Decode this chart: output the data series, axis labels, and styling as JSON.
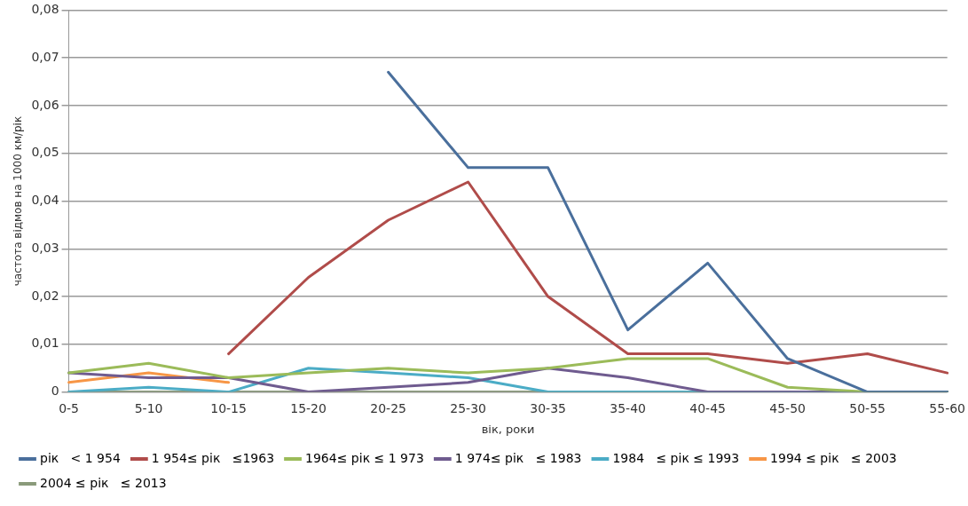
{
  "chart_data": {
    "type": "line",
    "xlabel": "вік, роки",
    "ylabel": "частота відмов на 1000 км/рік",
    "categories": [
      "0-5",
      "5-10",
      "10-15",
      "15-20",
      "20-25",
      "25-30",
      "30-35",
      "35-40",
      "40-45",
      "45-50",
      "50-55",
      "55-60"
    ],
    "ylim": [
      0,
      0.08
    ],
    "yticks": [
      {
        "value": 0,
        "label": "0"
      },
      {
        "value": 0.01,
        "label": "0,01"
      },
      {
        "value": 0.02,
        "label": "0,02"
      },
      {
        "value": 0.03,
        "label": "0,03"
      },
      {
        "value": 0.04,
        "label": "0,04"
      },
      {
        "value": 0.05,
        "label": "0,05"
      },
      {
        "value": 0.06,
        "label": "0,06"
      },
      {
        "value": 0.07,
        "label": "0,07"
      },
      {
        "value": 0.08,
        "label": "0,08"
      }
    ],
    "grid": "y",
    "legend": "bottom",
    "marker": "none",
    "line_style": "solid",
    "series": [
      {
        "name": "рік   < 1 954",
        "color": "#4a6f9c",
        "values": [
          null,
          null,
          null,
          null,
          0.067,
          0.047,
          0.047,
          0.013,
          0.027,
          0.007,
          0,
          0
        ]
      },
      {
        "name": "1 954≤ рік   ≤1963",
        "color": "#b04c4a",
        "values": [
          null,
          null,
          0.008,
          0.024,
          0.036,
          0.044,
          0.02,
          0.008,
          0.008,
          0.006,
          0.008,
          0.004
        ]
      },
      {
        "name": "1964≤ рік ≤ 1 973",
        "color": "#9bbb59",
        "values": [
          0.004,
          0.006,
          0.003,
          0.004,
          0.005,
          0.004,
          0.005,
          0.007,
          0.007,
          0.001,
          0,
          0
        ]
      },
      {
        "name": "1 974≤ рік   ≤ 1983",
        "color": "#6f5b8f",
        "values": [
          0.004,
          0.003,
          0.003,
          0,
          0.001,
          0.002,
          0.005,
          0.003,
          0,
          0,
          0,
          0
        ]
      },
      {
        "name": "1984   ≤ рік ≤ 1993",
        "color": "#4bacc6",
        "values": [
          0,
          0.001,
          0,
          0.005,
          0.004,
          0.003,
          0,
          0,
          0,
          0,
          0,
          0
        ]
      },
      {
        "name": "1994 ≤ рік   ≤ 2003",
        "color": "#f79646",
        "values": [
          0.002,
          0.004,
          0.002,
          null,
          null,
          null,
          null,
          null,
          null,
          null,
          null,
          null
        ]
      },
      {
        "name": "2004 ≤ рік   ≤ 2013",
        "color": "#8a9a7a",
        "values": [
          0,
          0,
          0,
          0,
          0,
          0,
          0,
          0,
          0,
          0,
          0,
          0
        ]
      }
    ]
  }
}
